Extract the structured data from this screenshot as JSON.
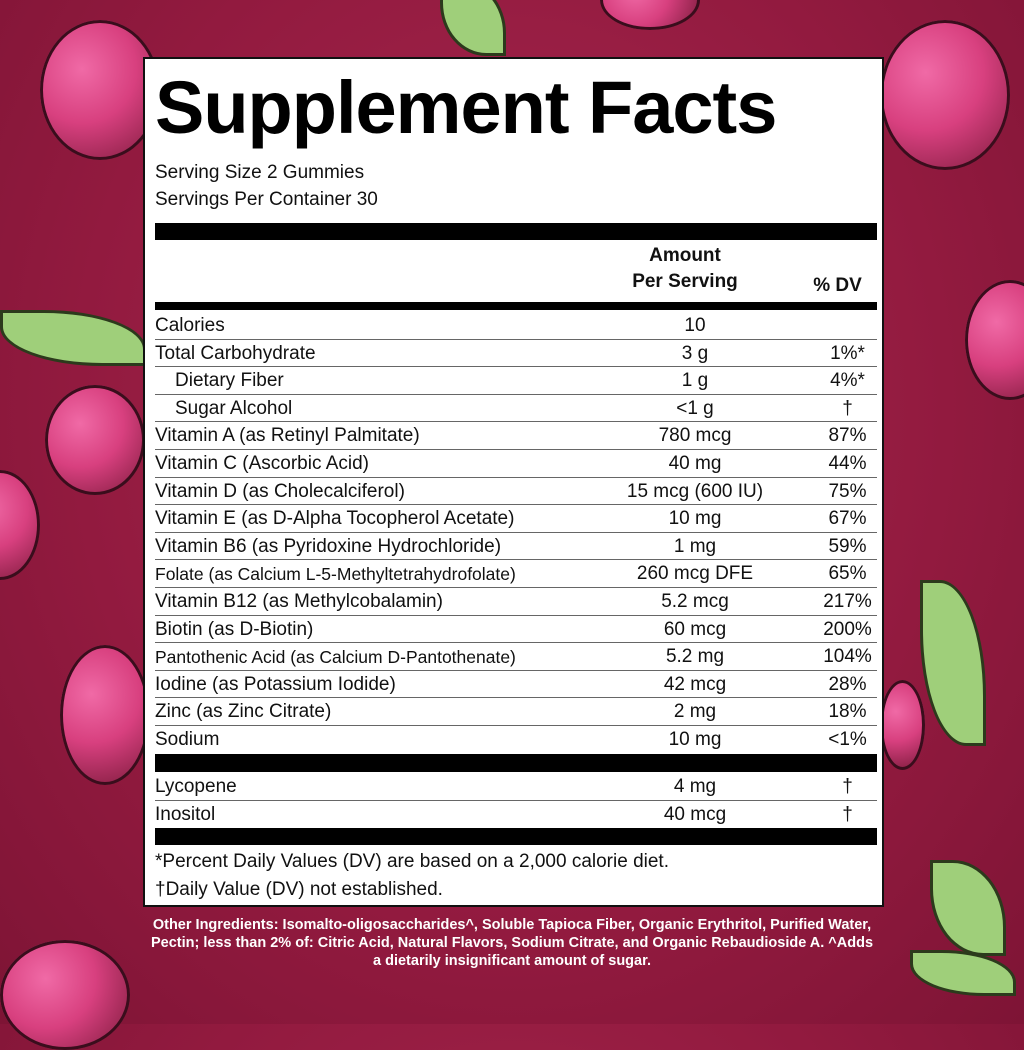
{
  "title": "Supplement Facts",
  "serving_size": "Serving Size 2 Gummies",
  "servings_per_container": "Servings Per Container 30",
  "header": {
    "amount_line1": "Amount",
    "amount_line2": "Per Serving",
    "dv": "% DV"
  },
  "rows": [
    {
      "name": "Calories",
      "amount": "10",
      "dv": ""
    },
    {
      "name": "Total Carbohydrate",
      "amount": "3 g",
      "dv": "1%*"
    },
    {
      "name": "Dietary Fiber",
      "amount": "1 g",
      "dv": "4%*"
    },
    {
      "name": "Sugar Alcohol",
      "amount": "<1 g",
      "dv": "†"
    },
    {
      "name": "Vitamin A (as Retinyl Palmitate)",
      "amount": "780 mcg",
      "dv": "87%"
    },
    {
      "name": "Vitamin C (Ascorbic Acid)",
      "amount": "40 mg",
      "dv": "44%"
    },
    {
      "name": "Vitamin D (as Cholecalciferol)",
      "amount": "15 mcg (600 IU)",
      "dv": "75%"
    },
    {
      "name": "Vitamin E (as D-Alpha Tocopherol Acetate)",
      "amount": "10 mg",
      "dv": "67%"
    },
    {
      "name": "Vitamin B6 (as Pyridoxine Hydrochloride)",
      "amount": "1 mg",
      "dv": "59%"
    },
    {
      "name": "Folate (as Calcium L-5-Methyltetrahydrofolate)",
      "amount": "260 mcg DFE",
      "dv": "65%"
    },
    {
      "name": "Vitamin B12 (as Methylcobalamin)",
      "amount": "5.2 mcg",
      "dv": "217%"
    },
    {
      "name": "Biotin (as D-Biotin)",
      "amount": "60 mcg",
      "dv": "200%"
    },
    {
      "name": "Pantothenic Acid (as Calcium D-Pantothenate)",
      "amount": "5.2 mg",
      "dv": "104%"
    },
    {
      "name": "Iodine (as Potassium Iodide)",
      "amount": "42 mcg",
      "dv": "28%"
    },
    {
      "name": "Zinc (as Zinc Citrate)",
      "amount": "2 mg",
      "dv": "18%"
    },
    {
      "name": "Sodium",
      "amount": "10 mg",
      "dv": "<1%"
    }
  ],
  "other_rows": [
    {
      "name": "Lycopene",
      "amount": "4 mg",
      "dv": "†"
    },
    {
      "name": "Inositol",
      "amount": "40 mcg",
      "dv": "†"
    }
  ],
  "footnote1": "*Percent Daily Values (DV) are based on a 2,000 calorie diet.",
  "footnote2": "†Daily Value (DV) not established.",
  "other_ingredients": "Other Ingredients: Isomalto-oligosaccharides^, Soluble Tapioca Fiber, Organic Erythritol, Purified Water, Pectin; less than 2% of: Citric Acid, Natural Flavors, Sodium Citrate, and Organic Rebaudioside A. ^Adds a dietarily insignificant amount of sugar.",
  "colors": {
    "background": "#921a3f",
    "panel": "#ffffff",
    "text": "#000000",
    "berry": "#d8407f",
    "leaf": "#9fcf7a"
  }
}
